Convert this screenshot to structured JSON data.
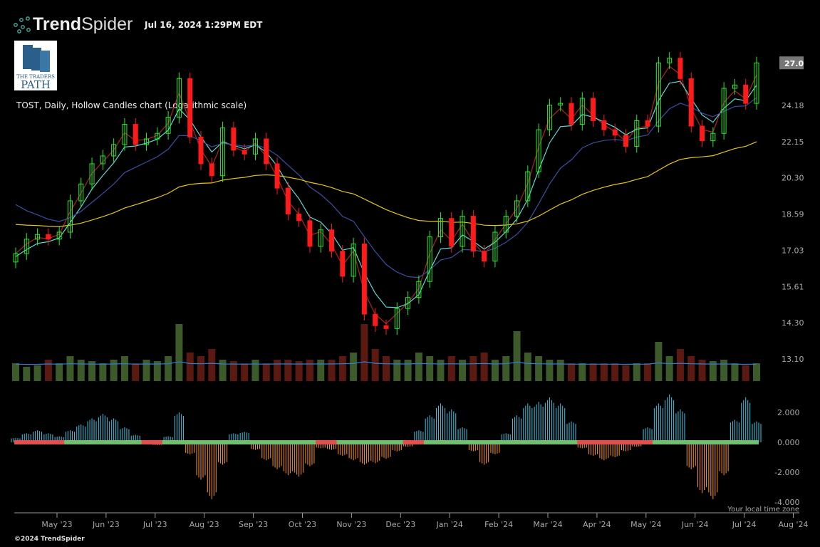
{
  "header": {
    "brand_bold": "Trend",
    "brand_light": "Spider",
    "timestamp": "Jul 16, 2024 1:29PM EDT",
    "watermark_logo_text": "THE TRADERS PATH"
  },
  "chart_title": "TOST, Daily, Hollow Candles chart (Logarithmic scale)",
  "footer": "©2024 TrendSpider",
  "timezone_note": "Your local time zone",
  "colors": {
    "up": "#22ee22",
    "down": "#ff1a1a",
    "ma_fast": "#b22222",
    "ma_20": "#5fd8d8",
    "ma_50": "#3a4fa0",
    "ma_200": "#e6c619",
    "hist_pos": "#3ec7e6",
    "hist_neg": "#ff9a10",
    "zero_green": "#6fbf6f",
    "zero_red": "#e05050",
    "volume_line": "#2f7fd0"
  },
  "chart_data": [
    {
      "type": "candlestick",
      "title": "TOST, Daily, Hollow Candles chart (Logarithmic scale)",
      "scale": "log",
      "ylim": [
        12.6,
        28.5
      ],
      "y_ticks": [
        "27.0",
        "24.18",
        "22.15",
        "20.30",
        "18.59",
        "17.03",
        "15.61",
        "14.30",
        "13.10"
      ],
      "y_tick_values": [
        27.0,
        24.18,
        22.15,
        20.3,
        18.59,
        17.03,
        15.61,
        14.3,
        13.1
      ],
      "last_price_label": "27.0",
      "x_ticks": [
        "May '23",
        "Jun '23",
        "Jul '23",
        "Aug '23",
        "Sep '23",
        "Oct '23",
        "Nov '23",
        "Dec '23",
        "Jan '24",
        "Feb '24",
        "Mar '24",
        "Apr '24",
        "May '24",
        "Jun '24",
        "Jul '24",
        "Aug '24"
      ],
      "closes": [
        16.9,
        17.5,
        17.7,
        17.5,
        17.8,
        19.2,
        20.0,
        21.0,
        21.4,
        22.0,
        23.1,
        22.0,
        22.3,
        22.6,
        23.5,
        25.8,
        22.4,
        21.0,
        20.4,
        22.9,
        21.7,
        21.5,
        22.3,
        21.0,
        19.8,
        18.6,
        18.3,
        17.2,
        17.9,
        17.0,
        16.0,
        17.3,
        14.6,
        14.2,
        14.1,
        14.8,
        15.2,
        15.8,
        17.6,
        18.4,
        17.2,
        18.5,
        17.0,
        16.6,
        17.8,
        18.5,
        19.2,
        20.6,
        22.8,
        24.2,
        24.3,
        23.1,
        24.6,
        23.3,
        22.8,
        22.5,
        21.9,
        23.3,
        23.0,
        26.8,
        27.1,
        25.8,
        23.0,
        22.2,
        22.6,
        25.2,
        25.4,
        24.3,
        26.8
      ],
      "volume_relative": [
        0.25,
        0.2,
        0.22,
        0.3,
        0.25,
        0.35,
        0.3,
        0.28,
        0.25,
        0.3,
        0.35,
        0.25,
        0.3,
        0.28,
        0.35,
        0.8,
        0.4,
        0.35,
        0.45,
        0.3,
        0.28,
        0.25,
        0.3,
        0.25,
        0.3,
        0.3,
        0.28,
        0.3,
        0.3,
        0.3,
        0.35,
        0.4,
        0.8,
        0.45,
        0.35,
        0.3,
        0.3,
        0.4,
        0.35,
        0.3,
        0.35,
        0.3,
        0.35,
        0.4,
        0.3,
        0.35,
        0.7,
        0.4,
        0.35,
        0.3,
        0.3,
        0.25,
        0.25,
        0.25,
        0.25,
        0.25,
        0.22,
        0.25,
        0.25,
        0.55,
        0.35,
        0.45,
        0.35,
        0.3,
        0.28,
        0.3,
        0.25,
        0.22,
        0.25
      ]
    },
    {
      "type": "bar",
      "y_ticks": [
        "2.000",
        "0.000",
        "-2.000",
        "-4.000"
      ],
      "y_tick_values": [
        2,
        0,
        -2,
        -4
      ],
      "ylim": [
        -4.5,
        3.6
      ],
      "values": [
        0.3,
        0.6,
        0.8,
        0.6,
        0.4,
        0.8,
        1.2,
        1.6,
        1.9,
        1.6,
        1.0,
        0.5,
        0.0,
        -0.2,
        0.4,
        2.0,
        -0.8,
        -2.5,
        -3.8,
        -1.5,
        0.6,
        0.7,
        -0.5,
        -1.2,
        -1.8,
        -2.2,
        -2.3,
        -1.6,
        -0.4,
        -0.5,
        -0.9,
        -1.2,
        -1.5,
        -1.4,
        -1.1,
        -0.6,
        -0.3,
        0.8,
        1.8,
        2.6,
        2.2,
        1.0,
        -0.6,
        -1.5,
        -0.8,
        0.6,
        1.8,
        2.6,
        2.7,
        3.0,
        2.6,
        1.4,
        -0.4,
        -0.9,
        -1.2,
        -1.0,
        -0.6,
        -0.3,
        1.0,
        2.6,
        3.2,
        2.2,
        -1.8,
        -3.4,
        -3.8,
        -2.2,
        1.5,
        3.0,
        1.4
      ],
      "zero_line_red_segments": [
        [
          0,
          4
        ],
        [
          12,
          13
        ],
        [
          28,
          29
        ],
        [
          36,
          37
        ],
        [
          52,
          58
        ]
      ]
    }
  ]
}
